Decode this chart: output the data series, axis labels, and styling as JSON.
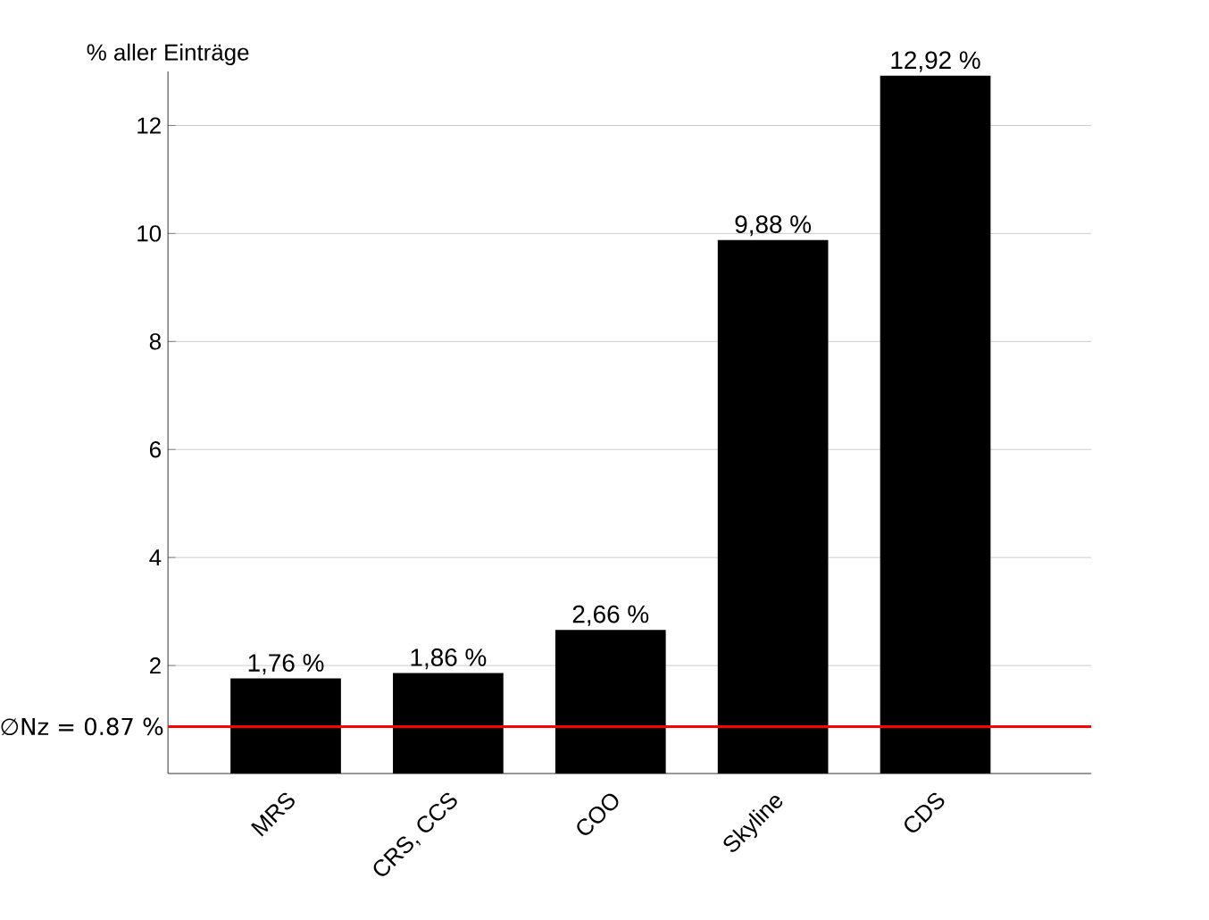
{
  "chart_data": {
    "type": "bar",
    "ylabel": "% aller Einträge",
    "categories": [
      "MRS",
      "CRS, CCS",
      "COO",
      "Skyline",
      "CDS"
    ],
    "values": [
      1.76,
      1.86,
      2.66,
      9.88,
      12.92
    ],
    "color": "#000000",
    "value_labels": [
      "1,76 %",
      "1,86 %",
      "2,66 %",
      "9,88 %",
      "12,92 %"
    ],
    "ylim": [
      0,
      13
    ],
    "yticks": [
      2,
      4,
      6,
      8,
      10,
      12
    ],
    "grid": "y",
    "ref_lines": [
      {
        "axis": "y",
        "value": 0.87,
        "label": "∅Nz = 0.87 %",
        "color": "#ff0000"
      }
    ]
  }
}
